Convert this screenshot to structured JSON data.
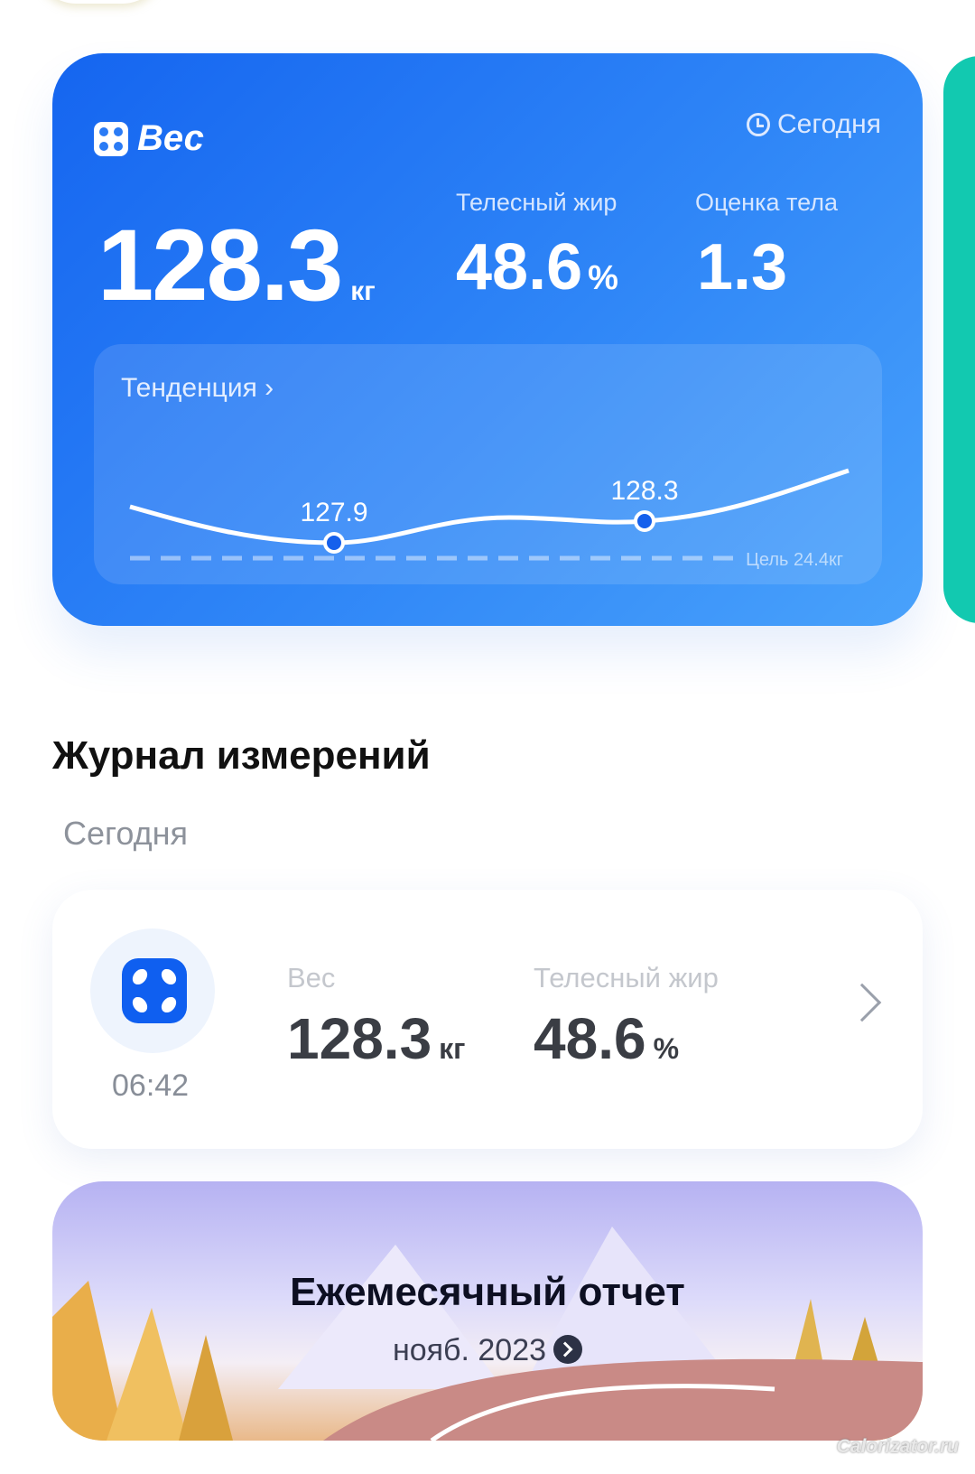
{
  "weight_card": {
    "title": "Вес",
    "date_label": "Сегодня",
    "weight": "128.3",
    "weight_unit": "кг",
    "fat_label": "Телесный жир",
    "fat_value": "48.6",
    "fat_unit": "%",
    "score_label": "Оценка тела",
    "score_value": "1.3",
    "trend_label": "Тенденция",
    "goal_label": "Цель 24.4кг",
    "accent": "#1565f0"
  },
  "chart_data": {
    "type": "line",
    "points": [
      {
        "label": "127.9",
        "value": 127.9
      },
      {
        "label": "128.3",
        "value": 128.3
      }
    ],
    "goal": 24.4,
    "grid": false
  },
  "journal": {
    "title": "Журнал измерений",
    "day": "Сегодня",
    "record": {
      "time": "06:42",
      "weight_label": "Вес",
      "weight": "128.3",
      "weight_unit": "кг",
      "fat_label": "Телесный жир",
      "fat": "48.6",
      "fat_unit": "%"
    }
  },
  "report": {
    "title": "Ежемесячный отчет",
    "date": "нояб. 2023"
  },
  "watermark": "Calorizator.ru"
}
